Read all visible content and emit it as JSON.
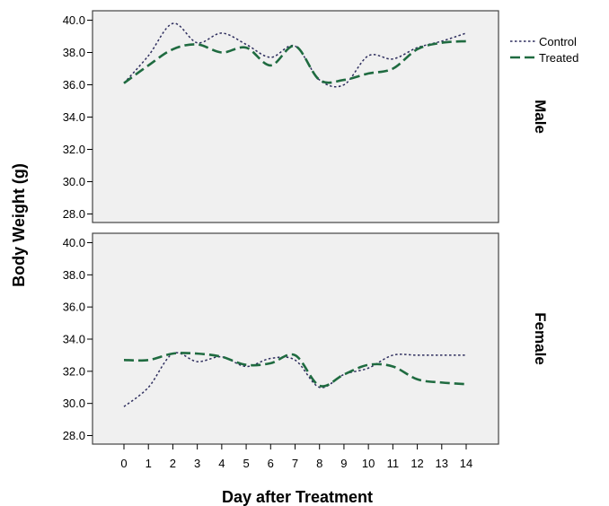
{
  "chart_data": {
    "type": "line",
    "xlabel": "Day after Treatment",
    "ylabel": "Body Weight (g)",
    "x": [
      0,
      1,
      2,
      3,
      4,
      5,
      6,
      7,
      8,
      9,
      10,
      11,
      12,
      13,
      14
    ],
    "x_tick_labels": [
      "0",
      "1",
      "2",
      "3",
      "4",
      "5",
      "6",
      "7",
      "8",
      "9",
      "10",
      "11",
      "12",
      "13",
      "14"
    ],
    "ylim": [
      27.5,
      40.3
    ],
    "y_ticks": [
      28.0,
      30.0,
      32.0,
      34.0,
      36.0,
      38.0,
      40.0
    ],
    "y_tick_labels": [
      "28.0",
      "30.0",
      "32.0",
      "34.0",
      "36.0",
      "38.0",
      "40.0"
    ],
    "legend": {
      "placement": "right",
      "entries": [
        {
          "name": "Control",
          "style": "dotted"
        },
        {
          "name": "Treated",
          "style": "dashed"
        }
      ]
    },
    "colors": {
      "control": "#2e2e5e",
      "treated": "#1f6b40",
      "panel_background": "#f0f0f0"
    },
    "panels": [
      {
        "label": "Male",
        "series": [
          {
            "name": "Control",
            "values": [
              36.1,
              37.8,
              39.8,
              38.6,
              39.2,
              38.5,
              37.7,
              38.4,
              36.3,
              36.0,
              37.8,
              37.6,
              38.3,
              38.7,
              39.2
            ]
          },
          {
            "name": "Treated",
            "values": [
              36.1,
              37.2,
              38.2,
              38.5,
              38.0,
              38.3,
              37.2,
              38.4,
              36.3,
              36.3,
              36.7,
              37.0,
              38.2,
              38.6,
              38.7
            ]
          }
        ]
      },
      {
        "label": "Female",
        "series": [
          {
            "name": "Control",
            "values": [
              29.8,
              31.0,
              33.1,
              32.6,
              32.9,
              32.3,
              32.8,
              32.7,
              31.0,
              31.8,
              32.2,
              33.0,
              33.0,
              33.0,
              33.0
            ]
          },
          {
            "name": "Treated",
            "values": [
              32.7,
              32.7,
              33.1,
              33.1,
              32.9,
              32.4,
              32.5,
              33.0,
              31.1,
              31.8,
              32.4,
              32.3,
              31.5,
              31.3,
              31.2
            ]
          }
        ]
      }
    ]
  }
}
